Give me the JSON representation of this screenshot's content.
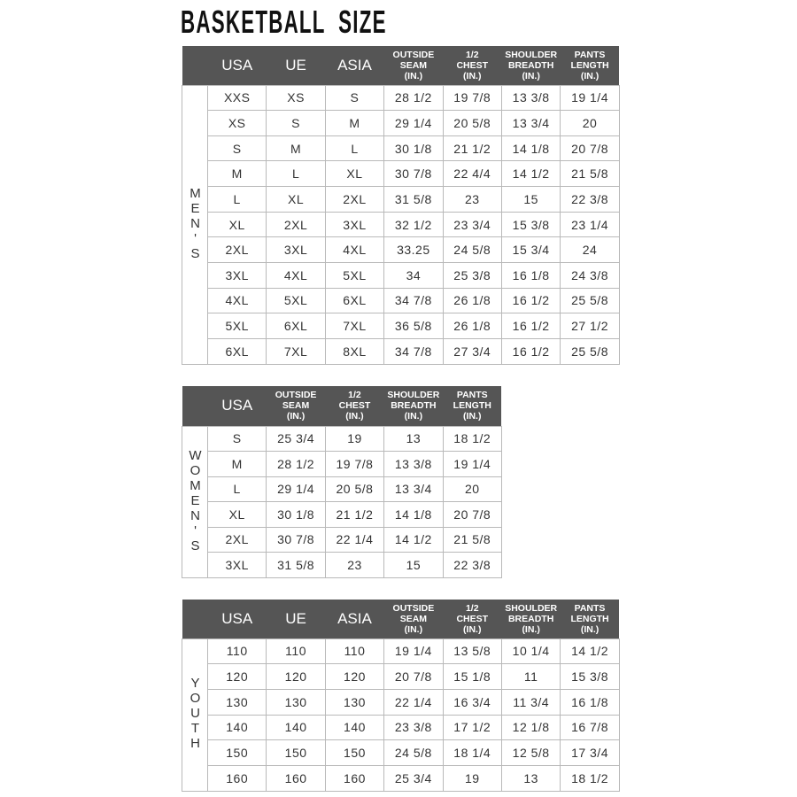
{
  "title": "BASKETBALL  SIZE",
  "colors": {
    "header_bg": "#555555",
    "header_text": "#ffffff",
    "grid": "#b9b9b9",
    "cell_text": "#333333"
  },
  "tables": [
    {
      "side_label": "MEN'S",
      "headers": [
        "USA",
        "UE",
        "ASIA",
        "OUTSIDE\nSEAM\n(IN.)",
        "1/2\nCHEST\n(IN.)",
        "SHOULDER\nBREADTH\n(IN.)",
        "PANTS\nLENGTH\n(IN.)"
      ],
      "rows": [
        [
          "XXS",
          "XS",
          "S",
          "28 1/2",
          "19 7/8",
          "13 3/8",
          "19 1/4"
        ],
        [
          "XS",
          "S",
          "M",
          "29 1/4",
          "20 5/8",
          "13 3/4",
          "20"
        ],
        [
          "S",
          "M",
          "L",
          "30 1/8",
          "21 1/2",
          "14 1/8",
          "20 7/8"
        ],
        [
          "M",
          "L",
          "XL",
          "30 7/8",
          "22 4/4",
          "14 1/2",
          "21 5/8"
        ],
        [
          "L",
          "XL",
          "2XL",
          "31 5/8",
          "23",
          "15",
          "22 3/8"
        ],
        [
          "XL",
          "2XL",
          "3XL",
          "32 1/2",
          "23 3/4",
          "15 3/8",
          "23 1/4"
        ],
        [
          "2XL",
          "3XL",
          "4XL",
          "33.25",
          "24 5/8",
          "15 3/4",
          "24"
        ],
        [
          "3XL",
          "4XL",
          "5XL",
          "34",
          "25 3/8",
          "16 1/8",
          "24 3/8"
        ],
        [
          "4XL",
          "5XL",
          "6XL",
          "34 7/8",
          "26 1/8",
          "16 1/2",
          "25 5/8"
        ],
        [
          "5XL",
          "6XL",
          "7XL",
          "36 5/8",
          "26 1/8",
          "16 1/2",
          "27 1/2"
        ],
        [
          "6XL",
          "7XL",
          "8XL",
          "34 7/8",
          "27 3/4",
          "16 1/2",
          "25 5/8"
        ]
      ]
    },
    {
      "side_label": "WOMEN'S",
      "headers": [
        "USA",
        "OUTSIDE\nSEAM\n(IN.)",
        "1/2\nCHEST\n(IN.)",
        "SHOULDER\nBREADTH\n(IN.)",
        "PANTS\nLENGTH\n(IN.)"
      ],
      "rows": [
        [
          "S",
          "25 3/4",
          "19",
          "13",
          "18 1/2"
        ],
        [
          "M",
          "28 1/2",
          "19 7/8",
          "13 3/8",
          "19 1/4"
        ],
        [
          "L",
          "29 1/4",
          "20 5/8",
          "13 3/4",
          "20"
        ],
        [
          "XL",
          "30 1/8",
          "21 1/2",
          "14 1/8",
          "20 7/8"
        ],
        [
          "2XL",
          "30 7/8",
          "22 1/4",
          "14 1/2",
          "21 5/8"
        ],
        [
          "3XL",
          "31 5/8",
          "23",
          "15",
          "22 3/8"
        ]
      ]
    },
    {
      "side_label": "YOUTH",
      "headers": [
        "USA",
        "UE",
        "ASIA",
        "OUTSIDE\nSEAM\n(IN.)",
        "1/2\nCHEST\n(IN.)",
        "SHOULDER\nBREADTH\n(IN.)",
        "PANTS\nLENGTH\n(IN.)"
      ],
      "rows": [
        [
          "110",
          "110",
          "110",
          "19 1/4",
          "13 5/8",
          "10 1/4",
          "14 1/2"
        ],
        [
          "120",
          "120",
          "120",
          "20 7/8",
          "15 1/8",
          "11",
          "15 3/8"
        ],
        [
          "130",
          "130",
          "130",
          "22 1/4",
          "16 3/4",
          "11 3/4",
          "16 1/8"
        ],
        [
          "140",
          "140",
          "140",
          "23 3/8",
          "17 1/2",
          "12 1/8",
          "16 7/8"
        ],
        [
          "150",
          "150",
          "150",
          "24 5/8",
          "18 1/4",
          "12 5/8",
          "17 3/4"
        ],
        [
          "160",
          "160",
          "160",
          "25 3/4",
          "19",
          "13",
          "18 1/2"
        ]
      ]
    }
  ]
}
